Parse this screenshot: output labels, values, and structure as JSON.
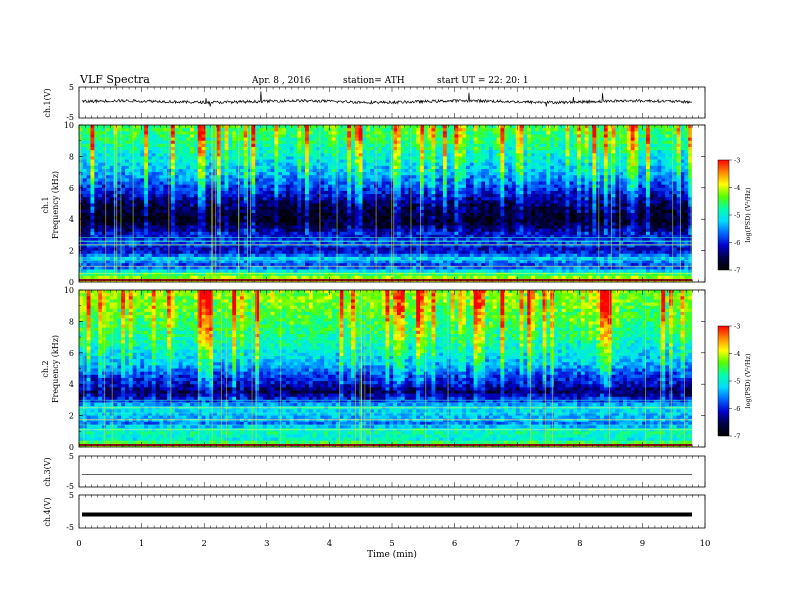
{
  "header": {
    "title": "VLF  Spectra",
    "date": "Apr. 8  , 2016",
    "station": "station= ATH",
    "start": "start  UT  =    22: 20: 1"
  },
  "colorbar": {
    "label": "log(PSD) (V²/Hz)",
    "ticks": [
      "-3",
      "-4",
      "-5",
      "-6",
      "-7"
    ],
    "stops": [
      "#ff0000",
      "#ff8800",
      "#ffff00",
      "#55ff00",
      "#00ffaa",
      "#00ddff",
      "#0066ff",
      "#0000cc",
      "#000044",
      "#000000"
    ]
  },
  "chart_data": [
    {
      "type": "line",
      "panel": "ch1-waveform",
      "ylabel": "ch.1(V)",
      "ylim": [
        -5,
        5
      ],
      "yticks": [
        "5",
        "-5"
      ],
      "xlim": [
        0,
        10
      ],
      "approx_level_V": 0.3,
      "color": "#000000"
    },
    {
      "type": "heatmap",
      "panel": "ch1-spectrogram",
      "ylabel": "Frequency  (kHz)",
      "channel_label": "ch.1",
      "ylim": [
        0,
        10
      ],
      "yticks": [
        "0",
        "2",
        "4",
        "6",
        "8",
        "10"
      ],
      "xlim": [
        0,
        10
      ],
      "zlim": [
        -7,
        -3
      ],
      "z_label": "log(PSD) (V²/Hz)",
      "band_profile_khz": [
        {
          "f": 0.0,
          "z": -3.6
        },
        {
          "f": 0.5,
          "z": -4.6
        },
        {
          "f": 1.0,
          "z": -5.9
        },
        {
          "f": 1.5,
          "z": -5.3
        },
        {
          "f": 2.0,
          "z": -6.2
        },
        {
          "f": 2.5,
          "z": -5.8
        },
        {
          "f": 3.0,
          "z": -6.1
        },
        {
          "f": 3.5,
          "z": -6.6
        },
        {
          "f": 4.0,
          "z": -6.9
        },
        {
          "f": 5.0,
          "z": -6.6
        },
        {
          "f": 6.0,
          "z": -6.0
        },
        {
          "f": 7.0,
          "z": -5.5
        },
        {
          "f": 8.0,
          "z": -5.2
        },
        {
          "f": 9.0,
          "z": -4.9
        },
        {
          "f": 10.0,
          "z": -4.7
        }
      ]
    },
    {
      "type": "heatmap",
      "panel": "ch2-spectrogram",
      "ylabel": "Frequency  (kHz)",
      "channel_label": "ch.2",
      "ylim": [
        0,
        10
      ],
      "yticks": [
        "0",
        "2",
        "4",
        "6",
        "8",
        "10"
      ],
      "xlim": [
        0,
        10
      ],
      "zlim": [
        -7,
        -3
      ],
      "z_label": "log(PSD) (V²/Hz)",
      "band_profile_khz": [
        {
          "f": 0.0,
          "z": -3.9
        },
        {
          "f": 0.5,
          "z": -5.0
        },
        {
          "f": 1.0,
          "z": -4.8
        },
        {
          "f": 1.5,
          "z": -5.6
        },
        {
          "f": 2.0,
          "z": -5.3
        },
        {
          "f": 2.5,
          "z": -5.1
        },
        {
          "f": 3.0,
          "z": -6.0
        },
        {
          "f": 3.5,
          "z": -6.6
        },
        {
          "f": 4.0,
          "z": -6.2
        },
        {
          "f": 4.5,
          "z": -6.0
        },
        {
          "f": 5.0,
          "z": -5.6
        },
        {
          "f": 6.0,
          "z": -5.2
        },
        {
          "f": 7.0,
          "z": -4.9
        },
        {
          "f": 8.0,
          "z": -4.7
        },
        {
          "f": 9.0,
          "z": -4.5
        },
        {
          "f": 10.0,
          "z": -4.4
        }
      ]
    },
    {
      "type": "line",
      "panel": "ch3-waveform",
      "ylabel": "ch.3(V)",
      "ylim": [
        -5,
        5
      ],
      "yticks": [
        "5",
        "-5"
      ],
      "xlim": [
        0,
        10
      ],
      "approx_level_V": -1.0,
      "color": "#000000"
    },
    {
      "type": "line",
      "panel": "ch4-waveform",
      "ylabel": "ch.4(V)",
      "ylim": [
        -5,
        5
      ],
      "yticks": [
        "5",
        "-5"
      ],
      "xlim": [
        0,
        10
      ],
      "approx_level_V": -0.9,
      "color": "#000000"
    }
  ],
  "xaxis": {
    "label": "Time  (min)",
    "ticks": [
      "0",
      "1",
      "2",
      "3",
      "4",
      "5",
      "6",
      "7",
      "8",
      "9",
      "10"
    ],
    "range": [
      0,
      10
    ]
  }
}
